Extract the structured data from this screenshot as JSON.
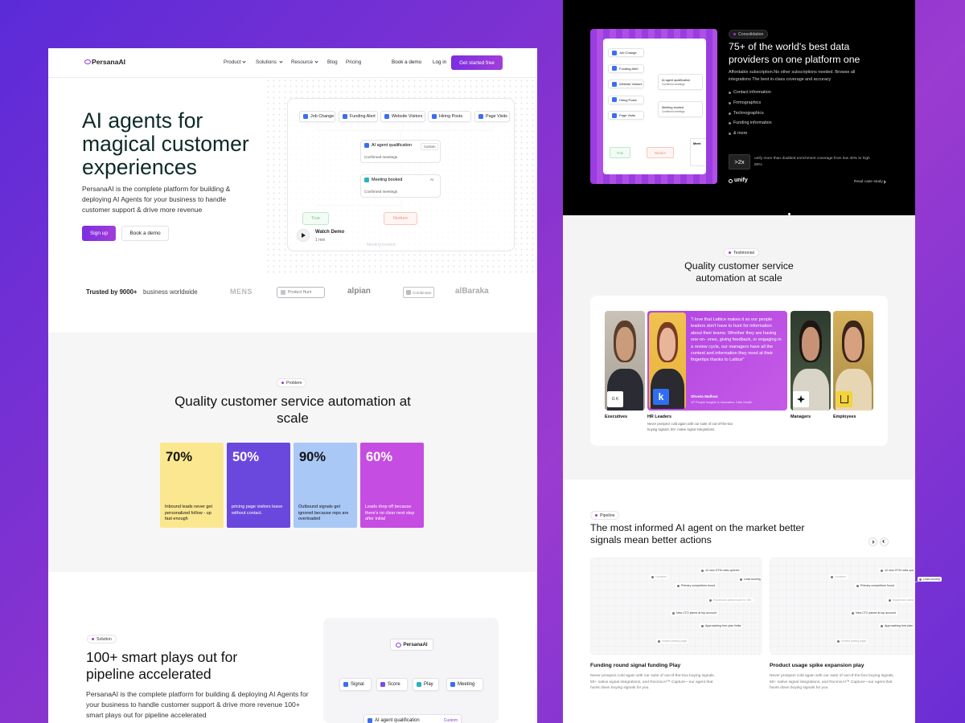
{
  "nav": {
    "logo": "PersanaAI",
    "links": [
      "Product",
      "Solutions",
      "Resource",
      "Blog",
      "Pricing"
    ],
    "book": "Book a demo",
    "login": "Log in",
    "cta": "Get started free"
  },
  "hero": {
    "title": "AI agents for magical customer experiences",
    "desc": "PersanaAI is the complete platform for building & deploying AI Agents for your business to handle customer support & drive more revenue",
    "signup": "Sign up",
    "demo": "Book a demo"
  },
  "flow": {
    "triggers": [
      "Job Change",
      "Funding Alert",
      "Website Visitors",
      "Hiring Posts",
      "Page Visits"
    ],
    "qual": "AI agent qualification",
    "qual_tag": "Custom",
    "qual_sub": "Confirmed meetings",
    "meeting": "Meeting booked",
    "meeting_tag": "AI",
    "meeting_sub": "Confirmed meetings",
    "true": "True",
    "nurture": "Nurture",
    "watch": "Watch Demo",
    "watch_len": "1 min",
    "ghost": "Meeting booked"
  },
  "trusted": {
    "lead": "Trusted by 9000+",
    "text": "business worldwide",
    "logos": [
      "MENS",
      "Product Hunt",
      "alpian",
      "Combinator",
      "alBaraka"
    ]
  },
  "problem": {
    "tag": "Problem",
    "title": "Quality customer service automation at scale",
    "stats": [
      {
        "value": "70%",
        "text": "Inbound leads never get personalized follow - up fast enough"
      },
      {
        "value": "50%",
        "text": "pricing page visitors leave without contact."
      },
      {
        "value": "90%",
        "text": "Outbound signals get ignored because reps are overloaded"
      },
      {
        "value": "60%",
        "text": "Leads drop off because there's no clear next step after initial"
      }
    ]
  },
  "solution": {
    "tag": "Solution",
    "title": "100+ smart plays out for pipeline accelerated",
    "desc": "PersanaAI is the complete platform for building & deploying AI Agents for your business to handle customer support & drive more revenue 100+ smart plays out for pipeline accelerated",
    "logo": "PersanaAI",
    "nodes": [
      "Signal",
      "Score",
      "Play",
      "Meeting"
    ],
    "next": "AI agent qualification",
    "next_tag": "Custom"
  },
  "consolidation": {
    "tag": "Consolidation",
    "title": "75+ of the world's best data providers on one platform one",
    "desc": "Affordable subscription.No other subscriptions needed. Browse all integrations The best in-class coverage and accuracy",
    "bullets": [
      "Contact information",
      "Firmographics",
      "Technographics",
      "Funding information",
      "& more"
    ],
    "stat": ">2x",
    "stat_text": "unify more than doubled enrichment coverage from low 40% to high 80%",
    "brand": "unify",
    "link": "Read case study",
    "card": {
      "triggers": [
        "Job Change",
        "Funding Alert",
        "Website Visitors",
        "Hiring Posts",
        "Page Visits"
      ],
      "qual": "AI agent qualification",
      "qual_sub": "Confirmed meetings",
      "meeting": "Meeting booked",
      "meeting_sub": "Confirmed meetings",
      "true": "True",
      "nurture": "Nurture",
      "meet": "Meet"
    }
  },
  "testimonial": {
    "tag": "Testimonial",
    "title": "Quality customer service automation at scale",
    "quote": "\"I love that Lattice makes it so our people leaders don't have to hunt for information about their teams. Whether they are having one-on- ones, giving feedback, or engaging in a review cycle, our managers have all the context and information they need at their fingertips thanks to Lattice\"",
    "author": "Shveta Malhan",
    "role": "VP People Insights & Innovation, Klick Health",
    "people": [
      "Executives",
      "HR Leaders",
      "Managers",
      "Employees"
    ],
    "badges": [
      "G K",
      "k"
    ],
    "hr_desc": "Never prospect cold again with our suite of out-of-the-box buying signals, 50+ native signal integrations."
  },
  "pipeline": {
    "tag": "Pipeline",
    "title": "The most informed AI agent on the market better signals mean better actions",
    "cards": [
      {
        "nodes": [
          "10 new GTM roles opened",
          "Location",
          "Primary competitors found",
          "Lead scoring",
          "Expansion plans found in 10K",
          "New CTO joined at top account",
          "Approaching free plan limits",
          "Visited pricing page"
        ],
        "title": "Funding round signal funding Play",
        "desc": "Never prospect cold again with our suite of out-of-the-box buying signals, 50+ native signal integrations, and RocmicAI™ Capture—our agent that hunts down buying signals for you."
      },
      {
        "nodes": [
          "10 new GTM roles opened",
          "Location",
          "Primary competitors found",
          "Lead scoring",
          "Expansion plans found in 10K",
          "New CTO joined at top account",
          "Approaching free plan limits",
          "Visited pricing page"
        ],
        "title": "Product usage spike expansion play",
        "desc": "Never prospect cold again with our suite of out-of-the-box buying signals, 50+ native signal integrations, and RocmicAI™ Capture—our agent that hunts down buying signals for you."
      }
    ]
  }
}
